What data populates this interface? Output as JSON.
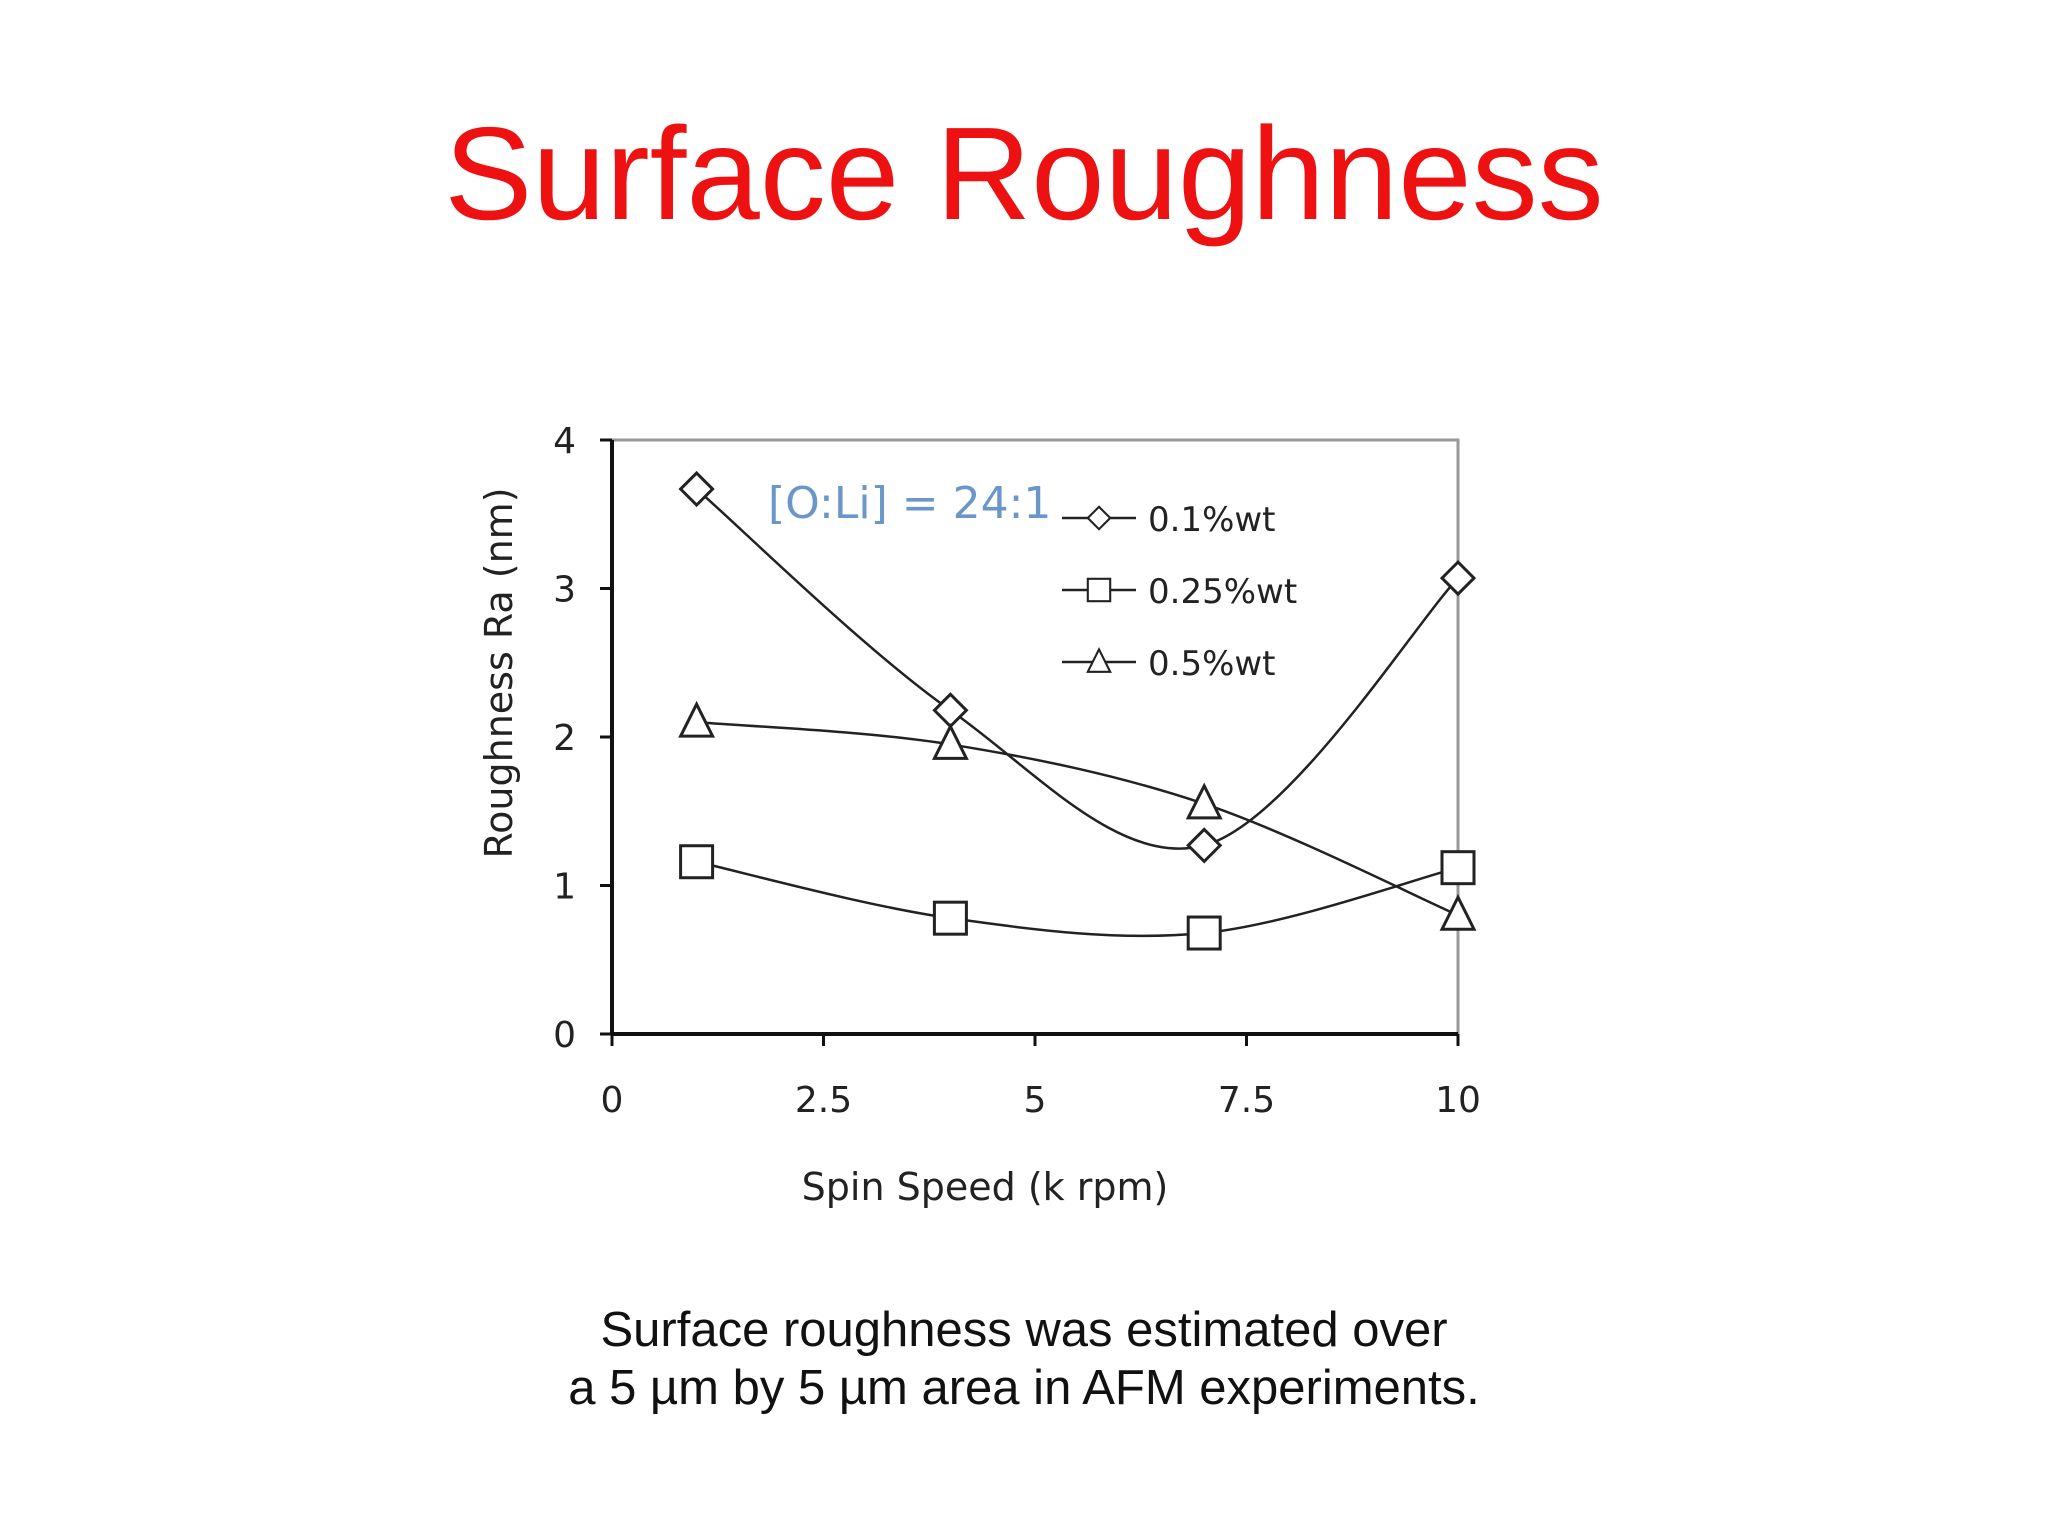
{
  "slide": {
    "title": "Surface Roughness",
    "caption_line1": "Surface roughness was estimated over",
    "caption_line2": "a 5 µm by 5 µm area in AFM experiments."
  },
  "chart_data": {
    "type": "line",
    "title": "",
    "xlabel": "Spin Speed (k rpm)",
    "ylabel": "Roughness Ra (nm)",
    "xlim": [
      0,
      10
    ],
    "ylim": [
      0,
      4
    ],
    "xticks": [
      "0",
      "2.5",
      "5",
      "7.5",
      "10"
    ],
    "yticks": [
      "0",
      "1",
      "2",
      "3",
      "4"
    ],
    "grid": false,
    "legend_position": "top-right",
    "annotation": "[O:Li] = 24:1",
    "series": [
      {
        "name": "0.1%wt",
        "marker": "diamond",
        "x": [
          1,
          4,
          7,
          10
        ],
        "y": [
          3.67,
          2.18,
          1.27,
          3.07
        ]
      },
      {
        "name": "0.25%wt",
        "marker": "square",
        "x": [
          1,
          4,
          7,
          10
        ],
        "y": [
          1.16,
          0.78,
          0.68,
          1.12
        ]
      },
      {
        "name": "0.5%wt",
        "marker": "triangle",
        "x": [
          1,
          4,
          7,
          10
        ],
        "y": [
          2.1,
          1.95,
          1.55,
          0.8
        ]
      }
    ],
    "colors": {
      "line": "#222222",
      "frame": "#999999",
      "annotation": "#6a96c8"
    }
  }
}
